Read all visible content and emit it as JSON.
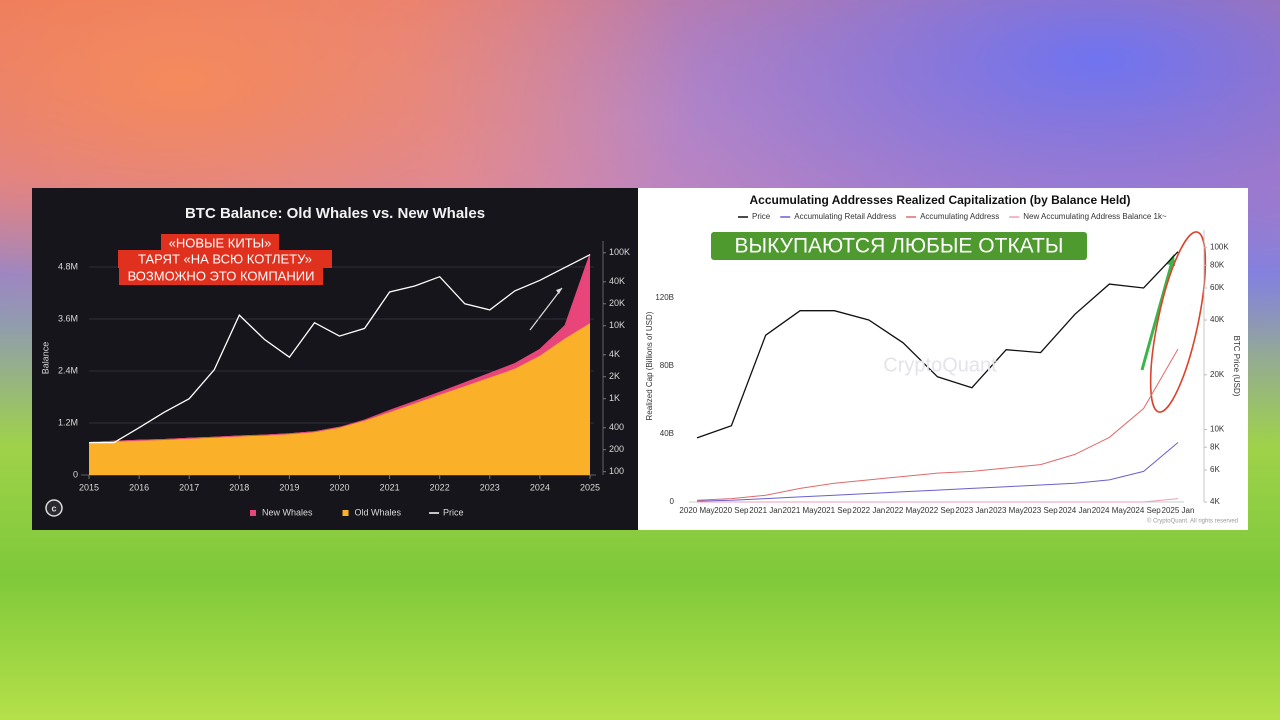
{
  "chart_data": [
    {
      "type": "area",
      "title": "BTC Balance: Old Whales vs. New Whales",
      "y_label": "Balance",
      "annotations": [
        "«НОВЫЕ КИТЫ»",
        "ТАРЯТ «НА ВСЮ КОТЛЕТУ»",
        "ВОЗМОЖНО ЭТО КОМПАНИИ"
      ],
      "x": [
        2015,
        2015.5,
        2016,
        2016.5,
        2017,
        2017.5,
        2018,
        2018.5,
        2019,
        2019.5,
        2020,
        2020.5,
        2021,
        2021.5,
        2022,
        2022.5,
        2023,
        2023.5,
        2024,
        2024.5,
        2025
      ],
      "xlim": [
        2015,
        2025
      ],
      "xticks": [
        2015,
        2016,
        2017,
        2018,
        2019,
        2020,
        2021,
        2022,
        2023,
        2024,
        2025
      ],
      "ylim": [
        0,
        5400000
      ],
      "yticks": [
        0,
        {
          "value": 1200000,
          "label": "1.2M"
        },
        {
          "value": 2400000,
          "label": "2.4M"
        },
        {
          "value": 3600000,
          "label": "3.6M"
        },
        {
          "value": 4800000,
          "label": "4.8M"
        }
      ],
      "y2lim": [
        90,
        145000
      ],
      "y2log": true,
      "y2ticks": [
        100,
        200,
        400,
        {
          "value": 1000,
          "label": "1K"
        },
        {
          "value": 2000,
          "label": "2K"
        },
        {
          "value": 4000,
          "label": "4K"
        },
        {
          "value": 10000,
          "label": "10K"
        },
        {
          "value": 20000,
          "label": "20K"
        },
        {
          "value": 40000,
          "label": "40K"
        },
        {
          "value": 100000,
          "label": "100K"
        }
      ],
      "grid": true,
      "stacked": true,
      "legend": "bottom",
      "series": [
        {
          "name": "New Whales",
          "color": "#e8457a",
          "values": [
            0,
            0,
            0,
            0,
            0,
            0,
            0,
            0,
            0,
            0,
            0,
            20000,
            40000,
            50000,
            60000,
            80000,
            100000,
            120000,
            150000,
            300000,
            1600000
          ]
        },
        {
          "name": "Old Whales",
          "color": "#fbb02a",
          "values": [
            750000,
            780000,
            800000,
            820000,
            850000,
            870000,
            900000,
            920000,
            950000,
            1000000,
            1100000,
            1250000,
            1450000,
            1650000,
            1850000,
            2050000,
            2250000,
            2450000,
            2750000,
            3150000,
            3500000
          ]
        },
        {
          "name": "Price",
          "color": "#ffffff",
          "axis": "y2",
          "values": [
            250,
            250,
            400,
            650,
            1000,
            2500,
            14000,
            6500,
            3700,
            11000,
            7200,
            9200,
            29000,
            35000,
            47000,
            20000,
            16500,
            30000,
            42000,
            63000,
            94000
          ]
        }
      ]
    },
    {
      "type": "line",
      "title": "Accumulating Addresses Realized Capitalization (by Balance Held)",
      "y_label": "Realized Cap (Billions of USD)",
      "y2_label": "BTC Price (USD)",
      "annotations": [
        "ВЫКУПАЮТСЯ ЛЮБЫЕ ОТКАТЫ",
        "CryptoQuant",
        "© CryptoQuant. All rights reserved"
      ],
      "categories": [
        "2020 May",
        "2020 Sep",
        "2021 Jan",
        "2021 May",
        "2021 Sep",
        "2022 Jan",
        "2022 May",
        "2022 Sep",
        "2023 Jan",
        "2023 May",
        "2023 Sep",
        "2024 Jan",
        "2024 May",
        "2024 Sep",
        "2025 Jan"
      ],
      "ylim": [
        0,
        160
      ],
      "yticks": [
        0,
        {
          "value": 40,
          "label": "40B"
        },
        {
          "value": 80,
          "label": "80B"
        },
        {
          "value": 120,
          "label": "120B"
        }
      ],
      "y2lim": [
        4000,
        125000
      ],
      "y2log": true,
      "y2ticks": [
        {
          "value": 4000,
          "label": "4K"
        },
        {
          "value": 6000,
          "label": "6K"
        },
        {
          "value": 8000,
          "label": "8K"
        },
        {
          "value": 10000,
          "label": "10K"
        },
        {
          "value": 20000,
          "label": "20K"
        },
        {
          "value": 40000,
          "label": "40K"
        },
        {
          "value": 60000,
          "label": "60K"
        },
        {
          "value": 80000,
          "label": "80K"
        },
        {
          "value": 100000,
          "label": "100K"
        }
      ],
      "grid": false,
      "legend": "top",
      "series": [
        {
          "name": "Price",
          "color": "#111111",
          "axis": "y2",
          "values": [
            9000,
            10500,
            33000,
            45000,
            45000,
            40000,
            30000,
            19500,
            17000,
            27500,
            26500,
            43000,
            63000,
            60000,
            95000
          ]
        },
        {
          "name": "Accumulating Retail Address",
          "color": "#6a5fd0",
          "values": [
            0.5,
            1,
            2,
            3,
            4,
            5,
            6,
            7,
            8,
            9,
            10,
            11,
            13,
            18,
            35
          ]
        },
        {
          "name": "Accumulating Address",
          "color": "#e06a6a",
          "values": [
            1,
            2,
            4,
            8,
            11,
            13,
            15,
            17,
            18,
            20,
            22,
            28,
            38,
            55,
            90
          ]
        },
        {
          "name": "New Accumulating Address Balance 1k~",
          "color": "#f29bbd",
          "values": [
            0,
            0,
            0,
            0,
            0,
            0,
            0,
            0,
            0,
            0,
            0,
            0,
            0,
            0,
            2
          ]
        }
      ]
    }
  ]
}
